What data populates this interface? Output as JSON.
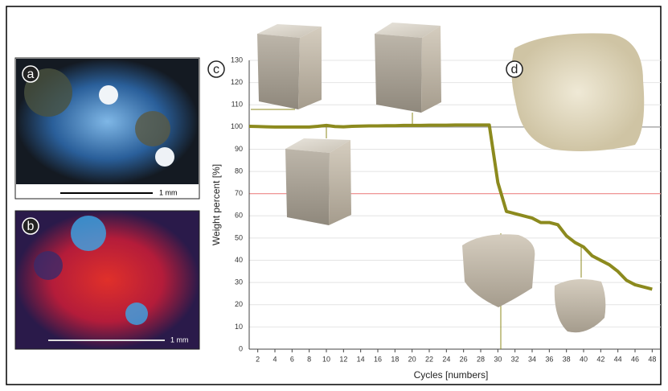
{
  "figure": {
    "panels": [
      "a",
      "b",
      "c",
      "d"
    ],
    "scale_bars": [
      "1 mm",
      "1 mm"
    ]
  },
  "chart_data": {
    "type": "line",
    "x": [
      1,
      2,
      3,
      4,
      5,
      6,
      7,
      8,
      9,
      10,
      11,
      12,
      13,
      14,
      15,
      16,
      17,
      18,
      19,
      20,
      21,
      22,
      23,
      24,
      25,
      26,
      27,
      28,
      29,
      30,
      31,
      32,
      33,
      34,
      35,
      36,
      37,
      38,
      39,
      40,
      41,
      42,
      43,
      44,
      45,
      46,
      47,
      48
    ],
    "series": [
      {
        "name": "Weight percent",
        "color": "#8c8a1e",
        "values": [
          100.3,
          100.2,
          100.1,
          100,
          100,
          100,
          100,
          100,
          100.3,
          100.7,
          100.2,
          100.1,
          100.3,
          100.4,
          100.5,
          100.5,
          100.6,
          100.6,
          100.7,
          100.7,
          100.7,
          100.8,
          100.8,
          100.8,
          100.9,
          100.9,
          100.9,
          100.9,
          100.9,
          75,
          62,
          61,
          60,
          59,
          57,
          57,
          56,
          51,
          48,
          46,
          42,
          40,
          38,
          35,
          31,
          29,
          28,
          27
        ]
      }
    ],
    "x_label": "Cycles [numbers]",
    "y_label": "Weight percent [%]",
    "xlim": [
      1,
      49
    ],
    "ylim": [
      0,
      130
    ],
    "xticks": [
      2,
      4,
      6,
      8,
      10,
      12,
      14,
      16,
      18,
      20,
      22,
      24,
      26,
      28,
      30,
      32,
      34,
      36,
      38,
      40,
      42,
      44,
      46,
      48
    ],
    "yticks": [
      0,
      10,
      20,
      30,
      40,
      50,
      60,
      70,
      80,
      90,
      100,
      110,
      120,
      130
    ],
    "reference_lines": [
      {
        "value": 100,
        "color": "#9a9a9a"
      },
      {
        "value": 70,
        "color": "#f08a8a"
      }
    ],
    "grid": true
  }
}
